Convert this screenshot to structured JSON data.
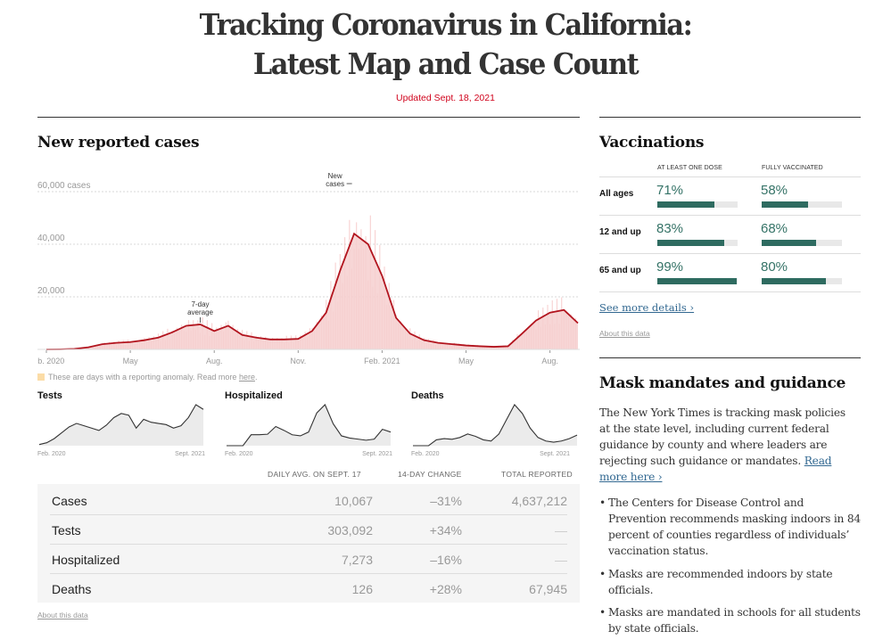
{
  "header": {
    "title_line1": "Tracking Coronavirus in California:",
    "title_line2": "Latest Map and Case Count",
    "updated": "Updated Sept. 18, 2021"
  },
  "cases_section": {
    "title": "New reported cases",
    "anomaly_note": "These are days with a reporting anomaly. Read more ",
    "anomaly_link": "here",
    "anomaly_color": "#fbdca7"
  },
  "chart_data": [
    {
      "type": "area",
      "title": "New reported cases",
      "ylabel": "cases",
      "ylim": [
        0,
        60000
      ],
      "yticks": [
        {
          "value": 60000,
          "label": "60,000 cases"
        },
        {
          "value": 40000,
          "label": "40,000"
        },
        {
          "value": 20000,
          "label": "20,000"
        }
      ],
      "xticks": [
        "Feb. 2020",
        "May",
        "Aug.",
        "Nov.",
        "Feb. 2021",
        "May",
        "Aug."
      ],
      "grid": true,
      "annotations": [
        {
          "text_line1": "7-day",
          "text_line2": "average",
          "target": "7-day average line"
        },
        {
          "text_line1": "New",
          "text_line2": "cases",
          "target": "daily new cases bars"
        }
      ],
      "colors": {
        "line": "#b2141e",
        "area": "#f6cfcf",
        "bars": "#f4b8b8"
      },
      "x_months": [
        0,
        0.5,
        1,
        1.5,
        2,
        2.5,
        3,
        3.5,
        4,
        4.5,
        5,
        5.5,
        6,
        6.5,
        7,
        7.5,
        8,
        8.5,
        9,
        9.5,
        10,
        10.5,
        11,
        11.5,
        12,
        12.5,
        13,
        13.5,
        14,
        14.5,
        15,
        15.5,
        16,
        16.5,
        17,
        17.5,
        18,
        18.5,
        19
      ],
      "series": [
        {
          "name": "7-day average",
          "values": [
            0,
            50,
            200,
            800,
            2000,
            2500,
            2800,
            3500,
            4500,
            6500,
            9000,
            9500,
            7000,
            9000,
            5500,
            4500,
            3800,
            3800,
            4000,
            7000,
            14000,
            30000,
            44000,
            40000,
            28000,
            12000,
            6000,
            3500,
            2500,
            2000,
            1500,
            1200,
            1000,
            1200,
            6000,
            11000,
            14000,
            15000,
            10000
          ]
        }
      ]
    },
    {
      "type": "area",
      "title": "Tests",
      "xticks": [
        "Feb. 2020",
        "Sept. 2021"
      ],
      "series": [
        {
          "name": "Tests",
          "values": [
            2,
            5,
            12,
            22,
            32,
            38,
            34,
            30,
            26,
            35,
            48,
            55,
            52,
            30,
            45,
            40,
            38,
            36,
            30,
            34,
            48,
            70,
            62
          ]
        }
      ]
    },
    {
      "type": "area",
      "title": "Hospitalized",
      "xticks": [
        "Feb. 2020",
        "Sept. 2021"
      ],
      "series": [
        {
          "name": "Hospitalized",
          "values": [
            0,
            0,
            0,
            20,
            20,
            21,
            35,
            28,
            20,
            18,
            25,
            60,
            75,
            40,
            18,
            14,
            12,
            10,
            12,
            30,
            25
          ]
        }
      ]
    },
    {
      "type": "area",
      "title": "Deaths",
      "xticks": [
        "Feb. 2020",
        "Sept. 2021"
      ],
      "series": [
        {
          "name": "Deaths",
          "values": [
            0,
            0,
            0,
            10,
            12,
            11,
            14,
            20,
            16,
            10,
            8,
            20,
            45,
            70,
            55,
            30,
            14,
            8,
            6,
            8,
            12,
            18
          ]
        }
      ]
    }
  ],
  "mini_charts": {
    "tests_label": "Tests",
    "hospitalized_label": "Hospitalized",
    "deaths_label": "Deaths",
    "start_label": "Feb. 2020",
    "end_label": "Sept. 2021"
  },
  "stats_table": {
    "columns": [
      "DAILY AVG. ON SEPT. 17",
      "14-DAY CHANGE",
      "TOTAL REPORTED"
    ],
    "rows": [
      {
        "name": "Cases",
        "daily_avg": "10,067",
        "change": "–31%",
        "total": "4,637,212"
      },
      {
        "name": "Tests",
        "daily_avg": "303,092",
        "change": "+34%",
        "total": "—"
      },
      {
        "name": "Hospitalized",
        "daily_avg": "7,273",
        "change": "–16%",
        "total": "—"
      },
      {
        "name": "Deaths",
        "daily_avg": "126",
        "change": "+28%",
        "total": "67,945"
      }
    ],
    "about_link": "About this data"
  },
  "vaccinations": {
    "title": "Vaccinations",
    "columns": [
      "AT LEAST ONE DOSE",
      "FULLY VACCINATED"
    ],
    "rows": [
      {
        "group": "All ages",
        "one_dose": "71%",
        "one_dose_value": 71,
        "full": "58%",
        "full_value": 58
      },
      {
        "group": "12 and up",
        "one_dose": "83%",
        "one_dose_value": 83,
        "full": "68%",
        "full_value": 68
      },
      {
        "group": "65 and up",
        "one_dose": "99%",
        "one_dose_value": 99,
        "full": "80%",
        "full_value": 80
      }
    ],
    "see_more": "See more details ›",
    "about_link": "About this data",
    "bar_color": "#2e6b60"
  },
  "masks": {
    "title": "Mask mandates and guidance",
    "intro": "The New York Times is tracking mask policies at the state level, including current federal guidance by county and where leaders are rejecting such guidance or mandates. ",
    "read_more": "Read more here ›",
    "bullets": [
      "The Centers for Disease Control and Prevention recommends masking indoors in 84 percent of counties regardless of individuals’ vaccination status.",
      "Masks are recommended indoors by state officials.",
      "Masks are mandated in schools for all students by state officials."
    ]
  }
}
